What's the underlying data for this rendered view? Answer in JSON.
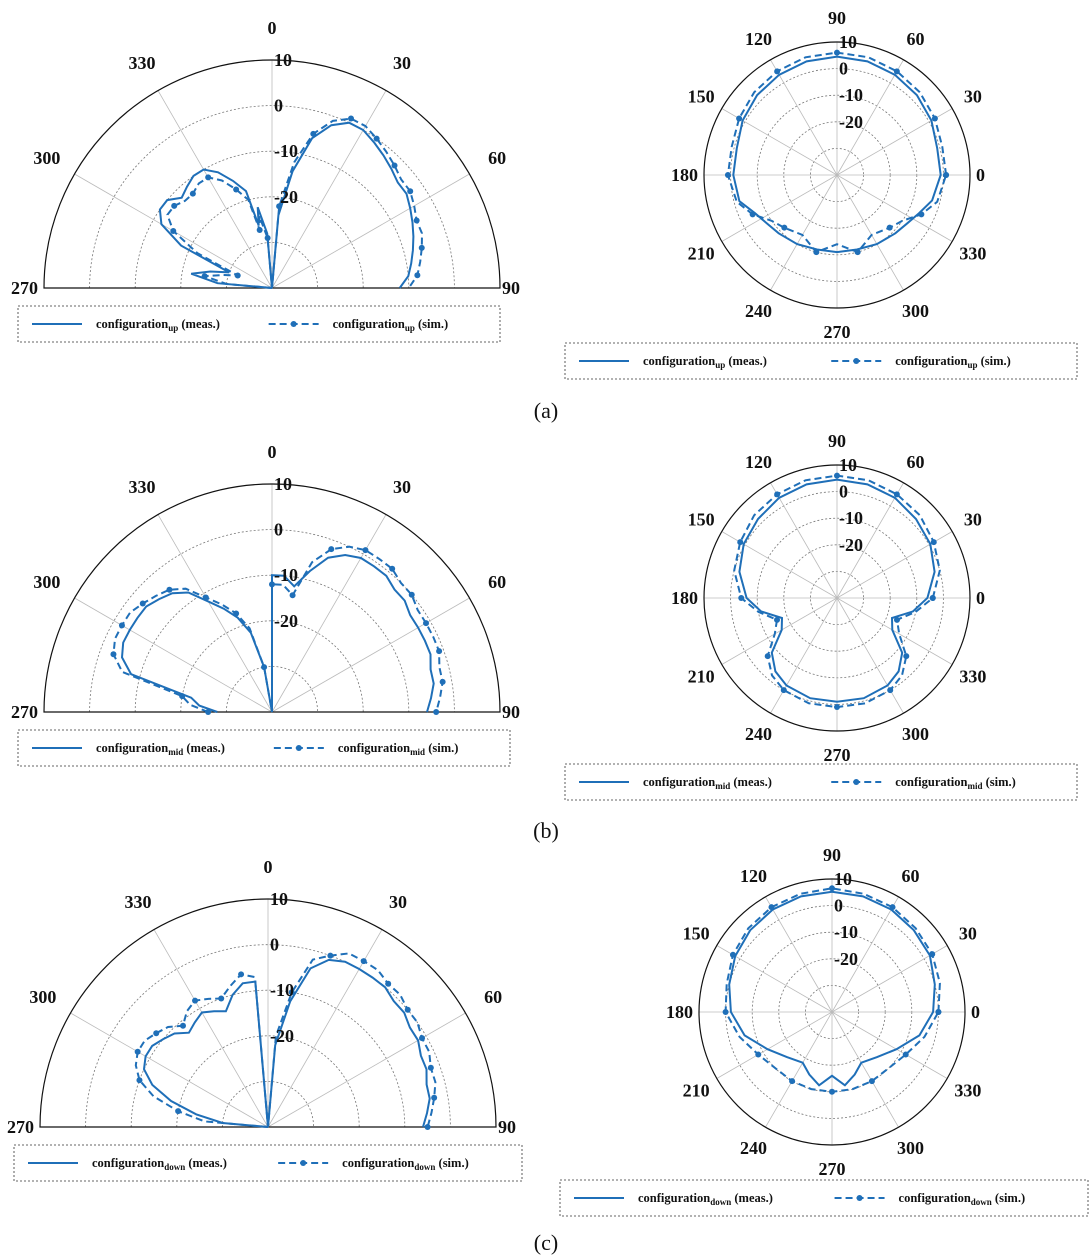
{
  "colors": {
    "series": "#1f6fb8",
    "ring": "#777777",
    "spoke": "#bbbbbb",
    "frame": "#111111"
  },
  "chart_data": [
    {
      "id": "a-half",
      "type": "polar-half",
      "panel": "(a)",
      "angle_ticks": [
        "270",
        "300",
        "330",
        "0",
        "30",
        "60",
        "90"
      ],
      "radial_ticks": [
        "10",
        "0",
        "-10",
        "-20"
      ],
      "rlim": [
        -40,
        10
      ],
      "legend": {
        "prefix": "configuration",
        "sub": "up",
        "meas_suffix": " (meas.)",
        "sim_suffix": " (sim.)"
      },
      "series": [
        {
          "role": "meas",
          "theta": [
            -90,
            -85,
            -80,
            -75,
            -70,
            -65,
            -60,
            -55,
            -50,
            -45,
            -40,
            -35,
            -30,
            -25,
            -20,
            -15,
            -12,
            -10,
            -5,
            0,
            5,
            10,
            15,
            20,
            25,
            30,
            35,
            40,
            45,
            50,
            55,
            60,
            65,
            70,
            75,
            80,
            85,
            90
          ],
          "r": [
            -40,
            -28,
            -22,
            -26,
            -30,
            -18,
            -12,
            -10,
            -10,
            -12,
            -11,
            -10,
            -10,
            -12,
            -15,
            -18,
            -26,
            -22,
            -28,
            -40,
            -24,
            -14,
            -6,
            -2,
            0,
            0,
            -1,
            -2,
            -3,
            -4,
            -4,
            -5,
            -6,
            -7,
            -8,
            -9,
            -10,
            -12
          ]
        },
        {
          "role": "sim",
          "theta": [
            -90,
            -85,
            -80,
            -75,
            -70,
            -65,
            -60,
            -55,
            -50,
            -45,
            -40,
            -35,
            -30,
            -25,
            -20,
            -15,
            -12,
            -10,
            -5,
            0,
            5,
            10,
            15,
            20,
            25,
            30,
            35,
            40,
            45,
            50,
            55,
            60,
            65,
            70,
            75,
            80,
            85,
            90
          ],
          "r": [
            -40,
            -30,
            -25,
            -29,
            -32,
            -22,
            -15,
            -12,
            -12,
            -13,
            -13,
            -12,
            -12,
            -14,
            -17,
            -20,
            -27,
            -24,
            -29,
            -40,
            -22,
            -12,
            -5,
            -1,
            1,
            1,
            0,
            -1,
            -2,
            -3,
            -3,
            -4,
            -5,
            -5,
            -6,
            -7,
            -8,
            -10
          ]
        }
      ]
    },
    {
      "id": "a-full",
      "type": "polar-full",
      "angle_ticks": [
        "0",
        "30",
        "60",
        "90",
        "120",
        "150",
        "180",
        "210",
        "240",
        "270",
        "300",
        "330"
      ],
      "radial_ticks": [
        "10",
        "0",
        "-10",
        "-20"
      ],
      "rlim": [
        -40,
        10
      ],
      "legend": {
        "prefix": "configuration",
        "sub": "up",
        "meas_suffix": " (meas.)",
        "sim_suffix": " (sim.)"
      },
      "series": [
        {
          "role": "meas",
          "theta": [
            0,
            15,
            30,
            45,
            60,
            75,
            90,
            105,
            120,
            135,
            150,
            165,
            180,
            195,
            205,
            215,
            225,
            240,
            255,
            270,
            285,
            300,
            315,
            325,
            335,
            345,
            360
          ],
          "r": [
            -1,
            -1,
            1,
            2.5,
            3.5,
            4.2,
            4.5,
            4.2,
            3.5,
            2.5,
            1,
            -1,
            -1,
            -2,
            -6,
            -8,
            -9,
            -10,
            -11,
            -11,
            -11,
            -10,
            -9,
            -8,
            -6,
            -3,
            -1
          ]
        },
        {
          "role": "sim",
          "theta": [
            0,
            15,
            30,
            45,
            60,
            75,
            90,
            105,
            120,
            135,
            150,
            165,
            180,
            195,
            205,
            215,
            225,
            240,
            255,
            270,
            285,
            300,
            315,
            325,
            335,
            345,
            360
          ],
          "r": [
            1,
            1,
            2.5,
            4,
            5,
            5.8,
            6,
            5.8,
            5,
            4,
            2.5,
            1,
            1,
            -1,
            -5,
            -10,
            -12,
            -14,
            -10,
            -14,
            -10,
            -14,
            -12,
            -10,
            -5,
            -1,
            1
          ]
        }
      ]
    },
    {
      "id": "b-half",
      "type": "polar-half",
      "panel": "(b)",
      "angle_ticks": [
        "270",
        "300",
        "330",
        "0",
        "30",
        "60",
        "90"
      ],
      "radial_ticks": [
        "10",
        "0",
        "-10",
        "-20"
      ],
      "rlim": [
        -40,
        10
      ],
      "legend": {
        "prefix": "configuration",
        "sub": "mid",
        "meas_suffix": " (meas.)",
        "sim_suffix": " (sim.)"
      },
      "series": [
        {
          "role": "meas",
          "theta": [
            -90,
            -85,
            -80,
            -75,
            -70,
            -65,
            -60,
            -55,
            -50,
            -45,
            -40,
            -35,
            -30,
            -25,
            -20,
            -15,
            -10,
            -5,
            0,
            5,
            10,
            15,
            20,
            25,
            30,
            35,
            40,
            45,
            50,
            55,
            60,
            65,
            70,
            75,
            80,
            85,
            90
          ],
          "r": [
            -28,
            -24,
            -22,
            -8,
            -5,
            -4,
            -4,
            -4,
            -4,
            -5,
            -6,
            -8,
            -12,
            -15,
            -18,
            -22,
            -30,
            -40,
            -10,
            -10,
            -12,
            -8,
            -4,
            -2,
            -1,
            -1,
            -1,
            -2,
            -2,
            -3,
            -3,
            -3,
            -3,
            -4,
            -4,
            -5,
            -6
          ]
        },
        {
          "role": "sim",
          "theta": [
            -90,
            -85,
            -80,
            -75,
            -70,
            -65,
            -60,
            -55,
            -50,
            -45,
            -40,
            -35,
            -30,
            -25,
            -20,
            -15,
            -10,
            -5,
            0,
            5,
            10,
            15,
            20,
            25,
            30,
            35,
            40,
            45,
            50,
            55,
            60,
            65,
            70,
            75,
            80,
            85,
            90
          ],
          "r": [
            -26,
            -22,
            -20,
            -6,
            -3,
            -2,
            -2,
            -2,
            -3,
            -4,
            -5,
            -7,
            -11,
            -14,
            -17,
            -21,
            -30,
            -40,
            -12,
            -12,
            -14,
            -6,
            -2,
            0,
            1,
            1,
            1,
            0,
            0,
            -1,
            -1,
            -1,
            -1,
            -2,
            -2,
            -3,
            -4
          ]
        }
      ]
    },
    {
      "id": "b-full",
      "type": "polar-full",
      "angle_ticks": [
        "0",
        "30",
        "60",
        "90",
        "120",
        "150",
        "180",
        "210",
        "240",
        "270",
        "300",
        "330"
      ],
      "radial_ticks": [
        "10",
        "0",
        "-10",
        "-20"
      ],
      "rlim": [
        -40,
        10
      ],
      "legend": {
        "prefix": "configuration",
        "sub": "mid",
        "meas_suffix": " (meas.)",
        "sim_suffix": " (sim.)"
      },
      "series": [
        {
          "role": "meas",
          "theta": [
            0,
            15,
            30,
            45,
            60,
            75,
            90,
            105,
            120,
            135,
            150,
            165,
            180,
            190,
            200,
            210,
            220,
            230,
            240,
            255,
            270,
            285,
            300,
            310,
            320,
            330,
            340,
            350,
            360
          ],
          "r": [
            -6,
            -2,
            0.5,
            2,
            3.5,
            4.2,
            4.5,
            4.2,
            3.5,
            2,
            0.5,
            -2,
            -6,
            -11,
            -18,
            -16,
            -8,
            -4,
            -2,
            -1,
            -1,
            -1,
            -2,
            -4,
            -8,
            -16,
            -18,
            -11,
            -6
          ]
        },
        {
          "role": "sim",
          "theta": [
            0,
            15,
            30,
            45,
            60,
            75,
            90,
            105,
            120,
            135,
            150,
            165,
            180,
            190,
            200,
            210,
            220,
            230,
            240,
            255,
            270,
            285,
            300,
            310,
            320,
            330,
            340,
            350,
            360
          ],
          "r": [
            -4,
            0,
            2,
            4,
            5,
            5.8,
            6,
            5.8,
            5,
            4,
            2,
            0,
            -4,
            -10,
            -16,
            -13,
            -6,
            -2,
            0,
            1,
            1,
            1,
            0,
            -2,
            -6,
            -13,
            -16,
            -10,
            -4
          ]
        }
      ]
    },
    {
      "id": "c-half",
      "type": "polar-half",
      "panel": "(c)",
      "angle_ticks": [
        "270",
        "300",
        "330",
        "0",
        "30",
        "60",
        "90"
      ],
      "radial_ticks": [
        "10",
        "0",
        "-10",
        "-20"
      ],
      "rlim": [
        -40,
        10
      ],
      "legend": {
        "prefix": "configuration",
        "sub": "down",
        "meas_suffix": " (meas.)",
        "sim_suffix": " (sim.)"
      },
      "series": [
        {
          "role": "meas",
          "theta": [
            -90,
            -85,
            -80,
            -75,
            -70,
            -65,
            -60,
            -55,
            -50,
            -45,
            -40,
            -35,
            -30,
            -25,
            -20,
            -15,
            -10,
            -5,
            0,
            5,
            10,
            15,
            20,
            25,
            30,
            35,
            40,
            45,
            50,
            55,
            60,
            65,
            70,
            75,
            80,
            85,
            90
          ],
          "r": [
            -40,
            -30,
            -24,
            -18,
            -13,
            -10,
            -9,
            -9,
            -10,
            -11,
            -13,
            -12,
            -11,
            -12,
            -13,
            -10,
            -8,
            -8,
            -40,
            -22,
            -12,
            -4,
            -1,
            0,
            0,
            0,
            0,
            -1,
            -1,
            -2,
            -2,
            -3,
            -3,
            -4,
            -4,
            -5,
            -6
          ]
        },
        {
          "role": "sim",
          "theta": [
            -90,
            -85,
            -80,
            -75,
            -70,
            -65,
            -60,
            -55,
            -50,
            -45,
            -40,
            -35,
            -30,
            -25,
            -20,
            -15,
            -10,
            -5,
            0,
            5,
            10,
            15,
            20,
            25,
            30,
            35,
            40,
            45,
            50,
            55,
            60,
            65,
            70,
            75,
            80,
            85,
            90
          ],
          "r": [
            -40,
            -26,
            -20,
            -14,
            -10,
            -8,
            -7,
            -7,
            -8,
            -9,
            -11,
            -9,
            -8,
            -9,
            -10,
            -8,
            -6,
            -7,
            -40,
            -20,
            -10,
            -2,
            0,
            2,
            2,
            2,
            1,
            1,
            0,
            0,
            -1,
            -1,
            -2,
            -2,
            -3,
            -4,
            -5
          ]
        }
      ]
    },
    {
      "id": "c-full",
      "type": "polar-full",
      "angle_ticks": [
        "0",
        "30",
        "60",
        "90",
        "120",
        "150",
        "180",
        "210",
        "240",
        "270",
        "300",
        "330"
      ],
      "radial_ticks": [
        "10",
        "0",
        "-10",
        "-20"
      ],
      "rlim": [
        -40,
        10
      ],
      "legend": {
        "prefix": "configuration",
        "sub": "down",
        "meas_suffix": " (meas.)",
        "sim_suffix": " (sim.)"
      },
      "series": [
        {
          "role": "meas",
          "theta": [
            0,
            15,
            30,
            45,
            60,
            75,
            90,
            105,
            120,
            135,
            150,
            165,
            180,
            195,
            210,
            225,
            240,
            250,
            260,
            270,
            280,
            290,
            300,
            315,
            330,
            345,
            360
          ],
          "r": [
            -2,
            0,
            2.5,
            3.5,
            4.5,
            5,
            5.2,
            5,
            4.5,
            3.5,
            2,
            0,
            -2,
            -6,
            -12,
            -16,
            -18,
            -15,
            -12,
            -16,
            -12,
            -15,
            -18,
            -16,
            -12,
            -6,
            -2
          ]
        },
        {
          "role": "sim",
          "theta": [
            0,
            15,
            30,
            45,
            60,
            75,
            90,
            105,
            120,
            135,
            150,
            165,
            180,
            195,
            210,
            225,
            240,
            255,
            270,
            285,
            300,
            315,
            330,
            345,
            360
          ],
          "r": [
            0,
            2,
            3.5,
            4.5,
            5.5,
            6,
            6.5,
            6,
            5.5,
            4.5,
            3,
            1,
            0,
            -4,
            -8,
            -10,
            -10,
            -10,
            -10,
            -10,
            -10,
            -10,
            -8,
            -4,
            0
          ]
        }
      ]
    }
  ]
}
